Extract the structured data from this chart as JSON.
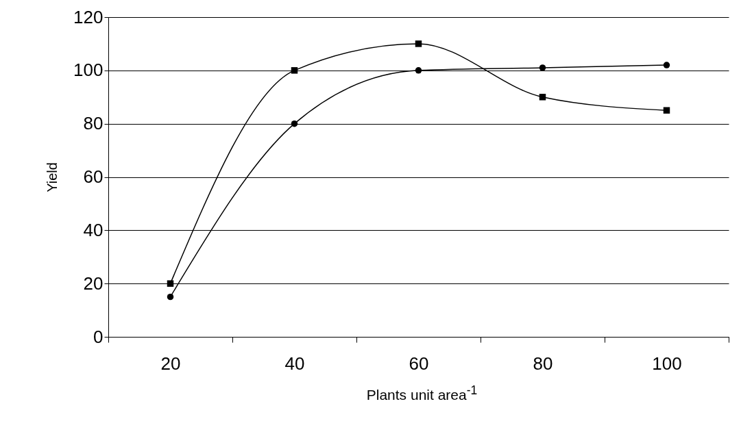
{
  "chart_data": {
    "type": "line",
    "xlabel": "Plants unit area$^{-1}$",
    "ylabel": "Yield",
    "categories": [
      "20",
      "40",
      "60",
      "80",
      "100"
    ],
    "series": [
      {
        "color": "#000000",
        "marker": "square",
        "values": [
          20,
          100,
          110,
          90,
          85
        ]
      },
      {
        "color": "#000000",
        "marker": "circle",
        "values": [
          15,
          80,
          100,
          101,
          102
        ]
      }
    ],
    "ylim": [
      0,
      120
    ],
    "yticks": [
      0,
      20,
      40,
      60,
      80,
      100,
      120
    ],
    "grid": "y",
    "line_style": "solid"
  }
}
